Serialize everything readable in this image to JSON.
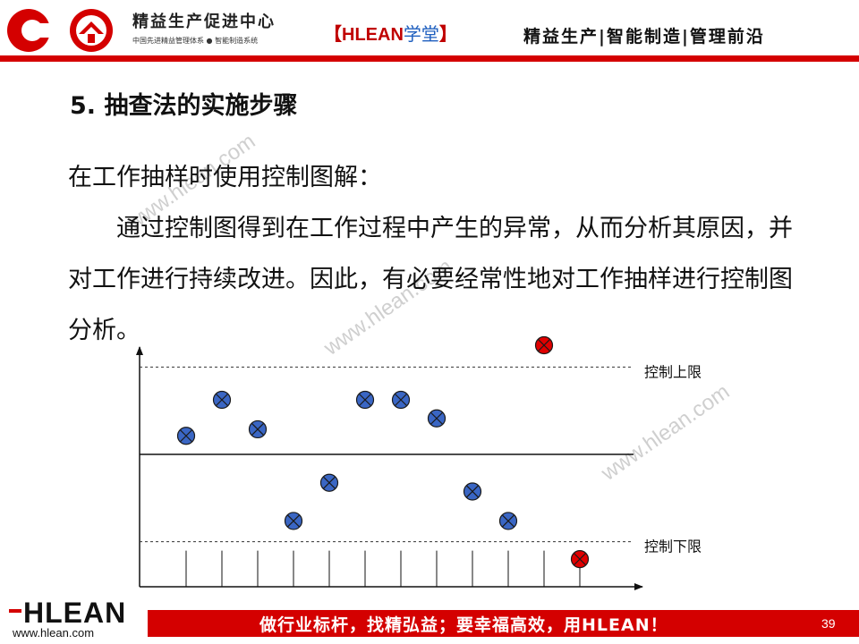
{
  "header": {
    "org_name": "精益生产促进中心",
    "org_subtitle": "中国先进精益管理体系 ● 智能制造系统",
    "brand_open": "【",
    "brand_name": "HLEAN",
    "brand_suffix": "学堂",
    "brand_close": "】",
    "slogan": "精益生产|智能制造|管理前沿",
    "accent_color": "#d40000"
  },
  "slide": {
    "title": "5. 抽查法的实施步骤",
    "intro": "在工作抽样时使用控制图解：",
    "paragraph": "通过控制图得到在工作过程中产生的异常，从而分析其原因，并对工作进行持续改进。因此，有必要经常性地对工作抽样进行控制图分析。"
  },
  "watermark": "www.hlean.com",
  "chart_data": {
    "type": "scatter",
    "upper_limit_label": "控制上限",
    "lower_limit_label": "控制下限",
    "upper_limit": 0.8,
    "center_line": 0,
    "lower_limit": -0.8,
    "points": [
      {
        "x": 1,
        "y": 0.17,
        "status": "normal"
      },
      {
        "x": 2,
        "y": 0.5,
        "status": "normal"
      },
      {
        "x": 3,
        "y": 0.23,
        "status": "normal"
      },
      {
        "x": 4,
        "y": -0.61,
        "status": "normal"
      },
      {
        "x": 5,
        "y": -0.26,
        "status": "normal"
      },
      {
        "x": 6,
        "y": 0.5,
        "status": "normal"
      },
      {
        "x": 7,
        "y": 0.5,
        "status": "normal"
      },
      {
        "x": 8,
        "y": 0.33,
        "status": "normal"
      },
      {
        "x": 9,
        "y": -0.34,
        "status": "normal"
      },
      {
        "x": 10,
        "y": -0.61,
        "status": "normal"
      },
      {
        "x": 11,
        "y": 1.0,
        "status": "abnormal"
      },
      {
        "x": 12,
        "y": -0.96,
        "status": "abnormal"
      }
    ],
    "normal_color": "#3a66c4",
    "abnormal_color": "#e00000"
  },
  "footer": {
    "logo_text": "HLEAN",
    "url": "www.hlean.com",
    "slogan": "做行业标杆，找精弘益；要幸福高效，用HLEAN！",
    "page_number": "39"
  }
}
